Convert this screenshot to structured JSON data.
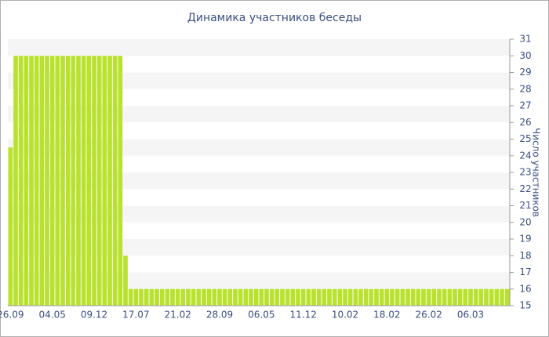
{
  "chart_data": {
    "type": "bar",
    "title": "Динамика участников беседы",
    "y_label": "Число участников",
    "categories": [
      "26.09",
      null,
      null,
      null,
      null,
      null,
      null,
      null,
      "04.05",
      null,
      null,
      null,
      null,
      null,
      null,
      null,
      "09.12",
      null,
      null,
      null,
      null,
      null,
      null,
      null,
      "17.07",
      null,
      null,
      null,
      null,
      null,
      null,
      null,
      "21.02",
      null,
      null,
      null,
      null,
      null,
      null,
      null,
      "28.09",
      null,
      null,
      null,
      null,
      null,
      null,
      null,
      "06.05",
      null,
      null,
      null,
      null,
      null,
      null,
      null,
      "11.12",
      null,
      null,
      null,
      null,
      null,
      null,
      null,
      "10.02",
      null,
      null,
      null,
      null,
      null,
      null,
      null,
      "18.02",
      null,
      null,
      null,
      null,
      null,
      null,
      null,
      "26.02",
      null,
      null,
      null,
      null,
      null,
      null,
      null,
      "06.03",
      null,
      null,
      null,
      null,
      null,
      null,
      null
    ],
    "values": [
      24.5,
      30,
      30,
      30,
      30,
      30,
      30,
      30,
      30,
      30,
      30,
      30,
      30,
      30,
      30,
      30,
      30,
      30,
      30,
      30,
      30,
      30,
      18,
      16,
      16,
      16,
      16,
      16,
      16,
      16,
      16,
      16,
      16,
      16,
      16,
      16,
      16,
      16,
      16,
      16,
      16,
      16,
      16,
      16,
      16,
      16,
      16,
      16,
      16,
      16,
      16,
      16,
      16,
      16,
      16,
      16,
      16,
      16,
      16,
      16,
      16,
      16,
      16,
      16,
      16,
      16,
      16,
      16,
      16,
      16,
      16,
      16,
      16,
      16,
      16,
      16,
      16,
      16,
      16,
      16,
      16,
      16,
      16,
      16,
      16,
      16,
      16,
      16,
      16,
      16,
      16,
      16,
      16,
      16,
      16,
      16
    ],
    "color": "#b8e22e",
    "ylim": [
      15,
      31
    ],
    "yticks": [
      15,
      16,
      17,
      18,
      19,
      20,
      21,
      22,
      23,
      24,
      25,
      26,
      27,
      28,
      29,
      30,
      31
    ],
    "y_axis_side": "right",
    "grid": "bands"
  }
}
